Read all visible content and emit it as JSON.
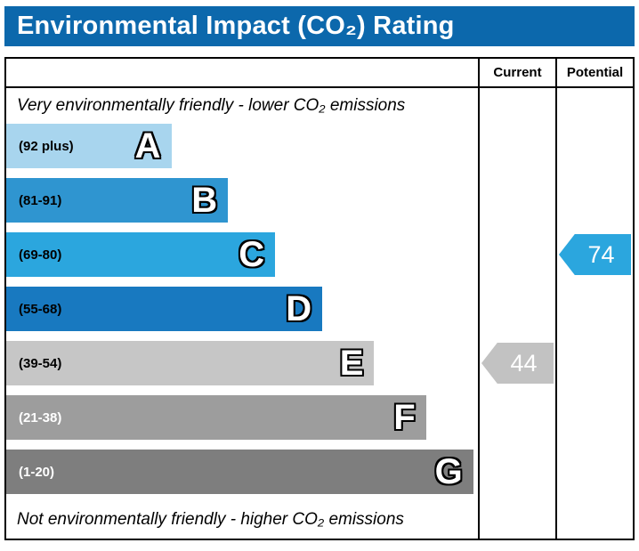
{
  "title": "Environmental Impact (CO₂) Rating",
  "columns": {
    "current": "Current",
    "potential": "Potential"
  },
  "notes": {
    "top": "Very environmentally friendly - lower CO₂ emissions",
    "bottom": "Not environmentally friendly - higher CO₂ emissions"
  },
  "colors": {
    "title_bg": "#0c68ac",
    "title_text": "#ffffff",
    "border": "#000000"
  },
  "chart_data": {
    "type": "bar",
    "title": "Environmental Impact (CO₂) Rating",
    "bands": [
      {
        "letter": "A",
        "range": "(92 plus)",
        "color": "#a8d5ee",
        "label_color": "#000000",
        "width_pct": 35
      },
      {
        "letter": "B",
        "range": "(81-91)",
        "color": "#2f95d0",
        "label_color": "#000000",
        "width_pct": 47
      },
      {
        "letter": "C",
        "range": "(69-80)",
        "color": "#2ba6de",
        "label_color": "#000000",
        "width_pct": 57
      },
      {
        "letter": "D",
        "range": "(55-68)",
        "color": "#1879c0",
        "label_color": "#000000",
        "width_pct": 67
      },
      {
        "letter": "E",
        "range": "(39-54)",
        "color": "#c6c6c6",
        "label_color": "#000000",
        "width_pct": 78
      },
      {
        "letter": "F",
        "range": "(21-38)",
        "color": "#9d9d9d",
        "label_color": "#ffffff",
        "width_pct": 89
      },
      {
        "letter": "G",
        "range": "(1-20)",
        "color": "#7e7e7e",
        "label_color": "#ffffff",
        "width_pct": 99
      }
    ],
    "current": {
      "value": "44",
      "band": "E",
      "color": "#c2c2c2"
    },
    "potential": {
      "value": "74",
      "band": "C",
      "color": "#2ba6de"
    }
  }
}
